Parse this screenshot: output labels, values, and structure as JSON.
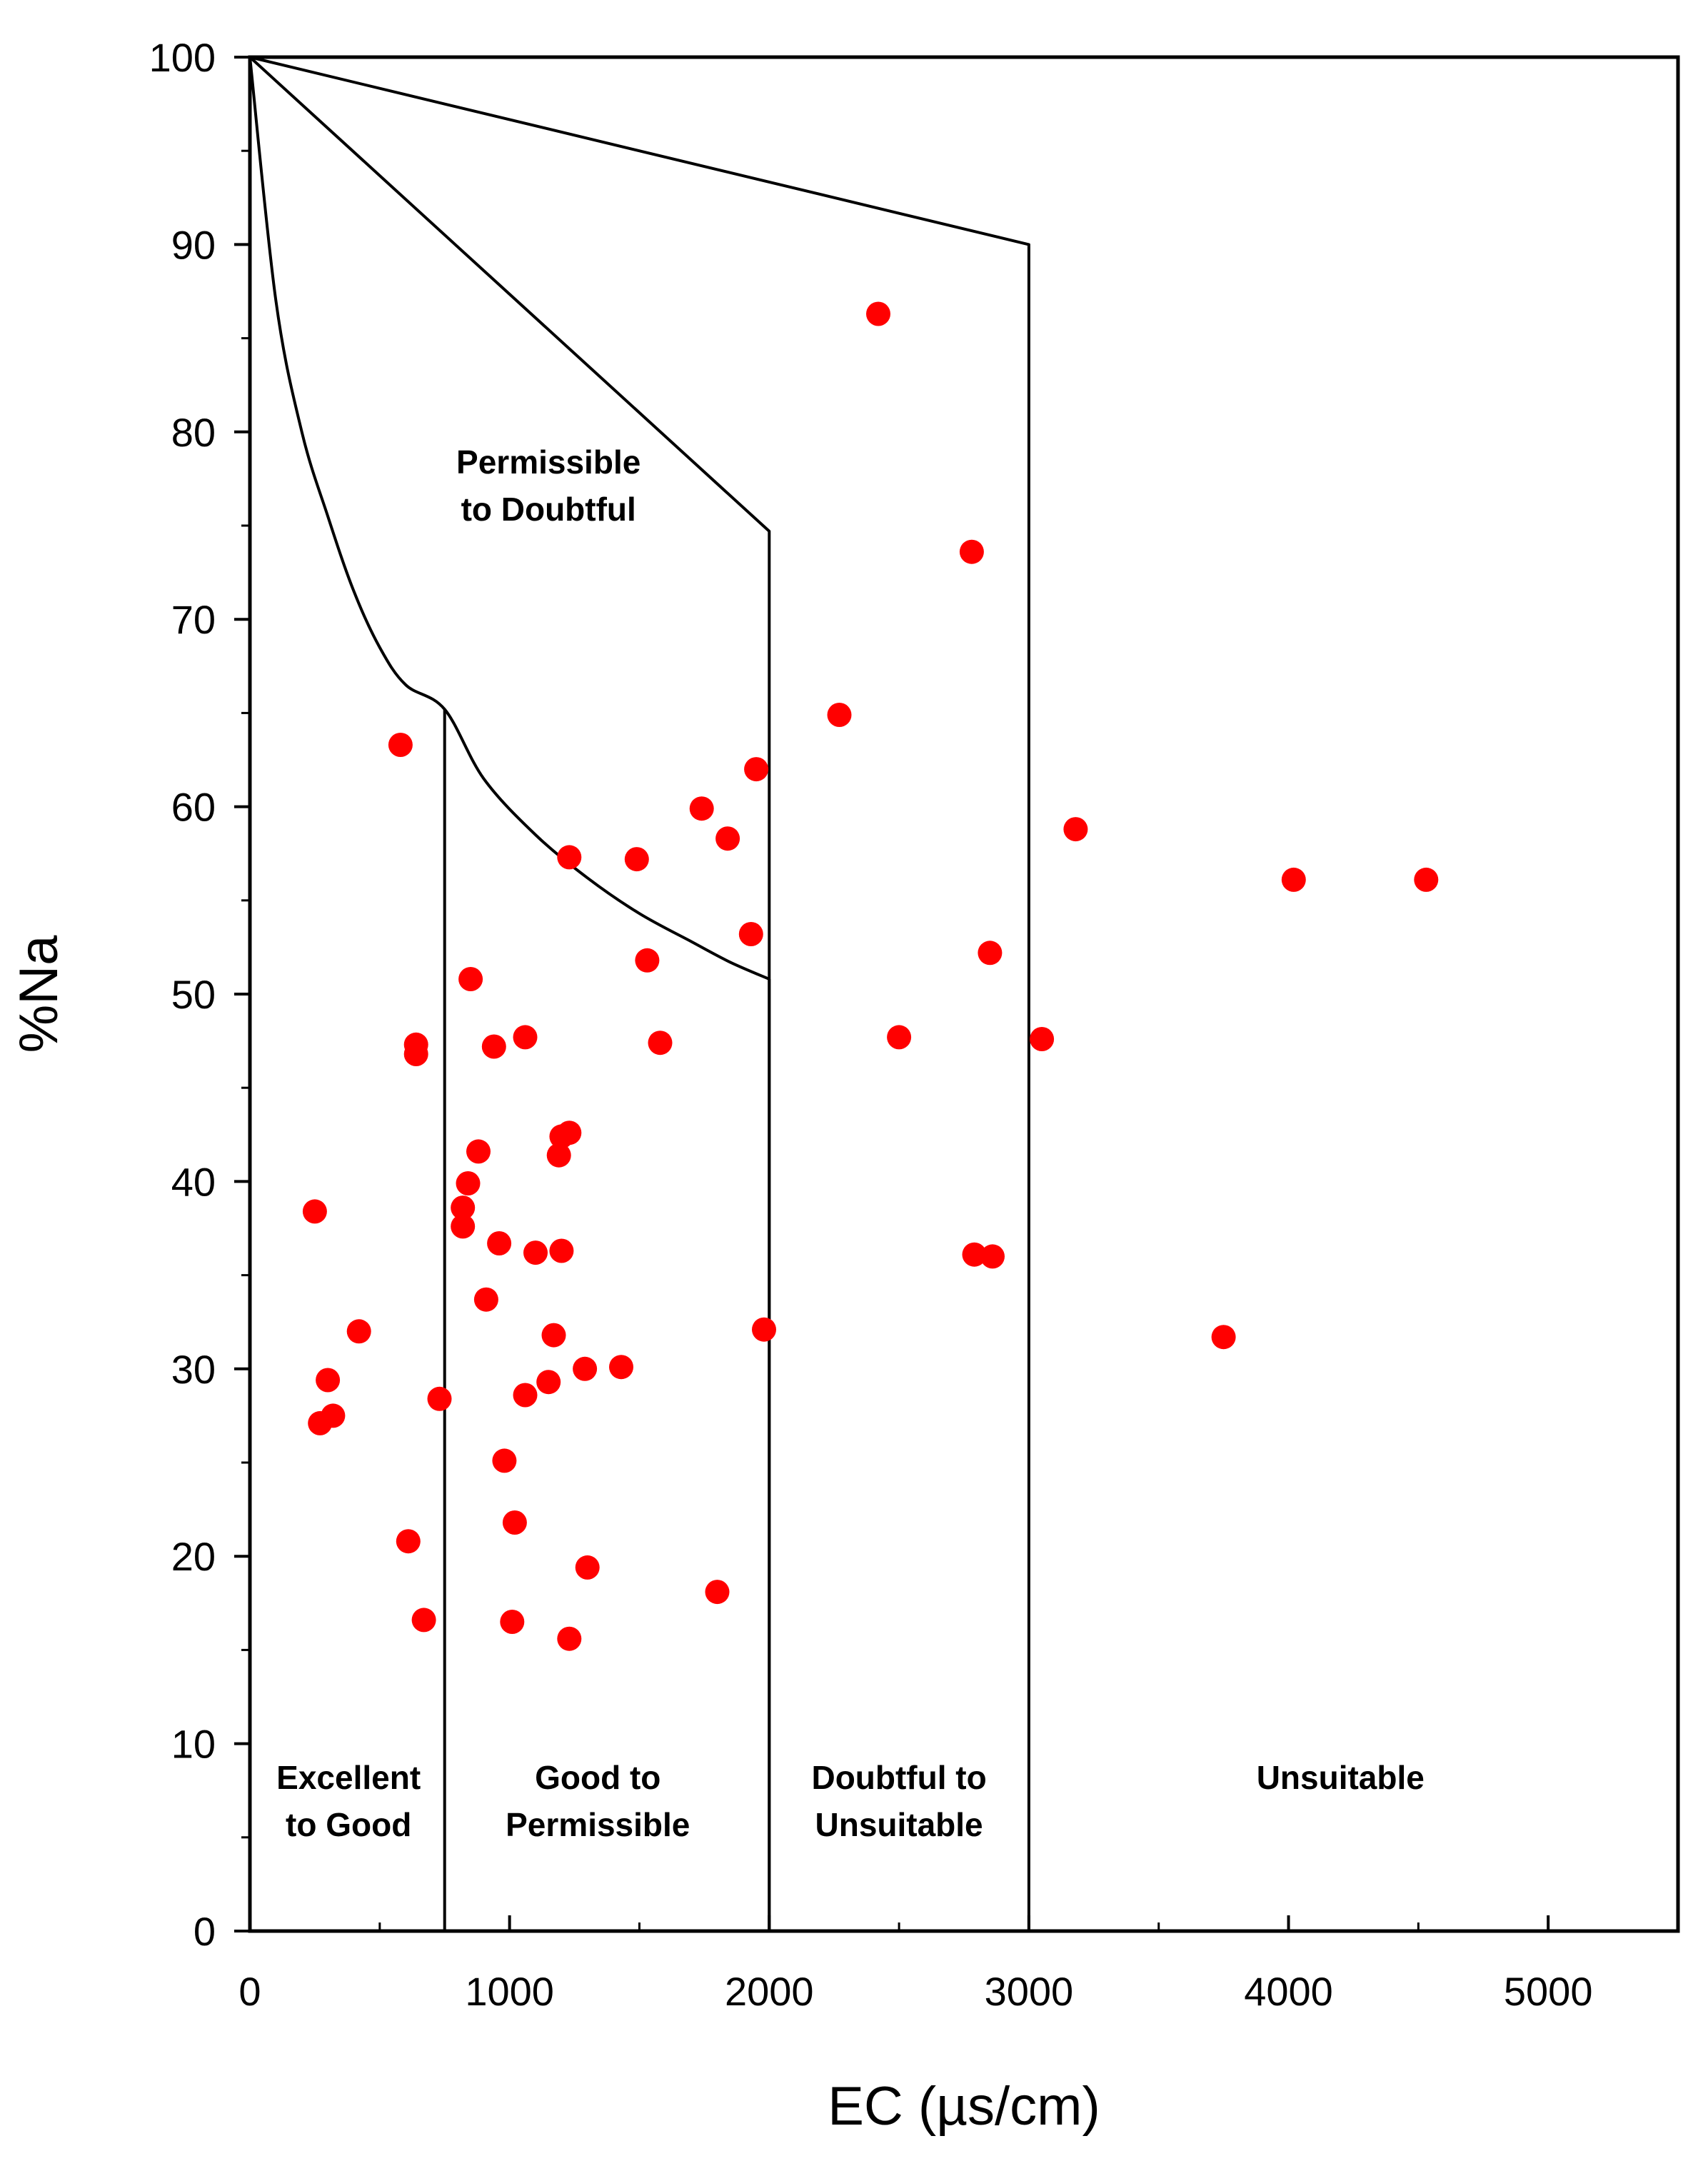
{
  "chart_data": {
    "type": "scatter",
    "title": "",
    "xlabel": "EC (µs/cm)",
    "ylabel": "%Na",
    "xlim": [
      0,
      5500
    ],
    "ylim": [
      0,
      100
    ],
    "xticks": [
      0,
      1000,
      2000,
      3000,
      4000,
      5000
    ],
    "xtick_labels": [
      "0",
      "1000",
      "2000",
      "3000",
      "4000",
      "5000"
    ],
    "yticks": [
      0,
      10,
      20,
      30,
      40,
      50,
      60,
      70,
      80,
      90,
      100
    ],
    "ytick_labels": [
      "0",
      "10",
      "20",
      "30",
      "40",
      "50",
      "60",
      "70",
      "80",
      "90",
      "100"
    ],
    "grid": false,
    "marker_color": "#ff0000",
    "line_color": "#000000",
    "boundaries": {
      "outer": [
        [
          0,
          100
        ],
        [
          3000,
          90
        ],
        [
          3000,
          0
        ]
      ],
      "doubtful": [
        [
          0,
          100
        ],
        [
          2000,
          74.7
        ],
        [
          2000,
          0
        ]
      ],
      "permissible_curve": [
        [
          0,
          100
        ],
        [
          100,
          87
        ],
        [
          200,
          80
        ],
        [
          300,
          75.5
        ],
        [
          400,
          71.5
        ],
        [
          500,
          68.5
        ],
        [
          600,
          66.5
        ],
        [
          750,
          65.2
        ],
        [
          900,
          61.5
        ],
        [
          1100,
          58.5
        ],
        [
          1300,
          56.2
        ],
        [
          1500,
          54.3
        ],
        [
          1700,
          52.8
        ],
        [
          1850,
          51.7
        ],
        [
          2000,
          50.8
        ]
      ],
      "excellent_divider": [
        [
          750,
          65.2
        ],
        [
          750,
          0
        ]
      ],
      "permissible_divider": [
        [
          2000,
          50.8
        ],
        [
          2000,
          0
        ]
      ]
    },
    "regions": [
      {
        "label_lines": [
          "Excellent",
          "to Good"
        ],
        "x": 380,
        "y": 5.3
      },
      {
        "label_lines": [
          "Good to",
          "Permissible"
        ],
        "x": 1340,
        "y": 5.3
      },
      {
        "label_lines": [
          "Doubtful to",
          "Unsuitable"
        ],
        "x": 2500,
        "y": 5.3
      },
      {
        "label_lines": [
          "Unsuitable"
        ],
        "x": 4200,
        "y": 5.3
      },
      {
        "label_lines": [
          "Permissible",
          "to Doubtful"
        ],
        "x": 1150,
        "y": 75.5
      }
    ],
    "series": [
      {
        "name": "samples",
        "points": [
          [
            2420,
            86.3
          ],
          [
            2780,
            73.6
          ],
          [
            2270,
            64.9
          ],
          [
            580,
            63.3
          ],
          [
            1950,
            62.0
          ],
          [
            1740,
            59.9
          ],
          [
            3180,
            58.8
          ],
          [
            1840,
            58.3
          ],
          [
            1230,
            57.3
          ],
          [
            1490,
            57.2
          ],
          [
            4020,
            56.1
          ],
          [
            4530,
            56.1
          ],
          [
            1930,
            53.2
          ],
          [
            2850,
            52.2
          ],
          [
            1530,
            51.8
          ],
          [
            850,
            50.8
          ],
          [
            640,
            47.3
          ],
          [
            640,
            46.8
          ],
          [
            940,
            47.2
          ],
          [
            1060,
            47.7
          ],
          [
            1580,
            47.4
          ],
          [
            2500,
            47.7
          ],
          [
            3050,
            47.6
          ],
          [
            1230,
            42.6
          ],
          [
            1200,
            42.4
          ],
          [
            880,
            41.6
          ],
          [
            1190,
            41.4
          ],
          [
            840,
            39.9
          ],
          [
            820,
            38.6
          ],
          [
            250,
            38.4
          ],
          [
            820,
            37.6
          ],
          [
            960,
            36.7
          ],
          [
            1100,
            36.2
          ],
          [
            1200,
            36.3
          ],
          [
            2790,
            36.1
          ],
          [
            2860,
            36.0
          ],
          [
            910,
            33.7
          ],
          [
            420,
            32.0
          ],
          [
            1170,
            31.8
          ],
          [
            1980,
            32.1
          ],
          [
            3750,
            31.7
          ],
          [
            1290,
            30.0
          ],
          [
            1430,
            30.1
          ],
          [
            300,
            29.4
          ],
          [
            1150,
            29.3
          ],
          [
            730,
            28.4
          ],
          [
            1060,
            28.6
          ],
          [
            320,
            27.5
          ],
          [
            270,
            27.1
          ],
          [
            980,
            25.1
          ],
          [
            610,
            20.8
          ],
          [
            1020,
            21.8
          ],
          [
            1300,
            19.4
          ],
          [
            1800,
            18.1
          ],
          [
            670,
            16.6
          ],
          [
            1010,
            16.5
          ],
          [
            1230,
            15.6
          ]
        ]
      }
    ]
  }
}
